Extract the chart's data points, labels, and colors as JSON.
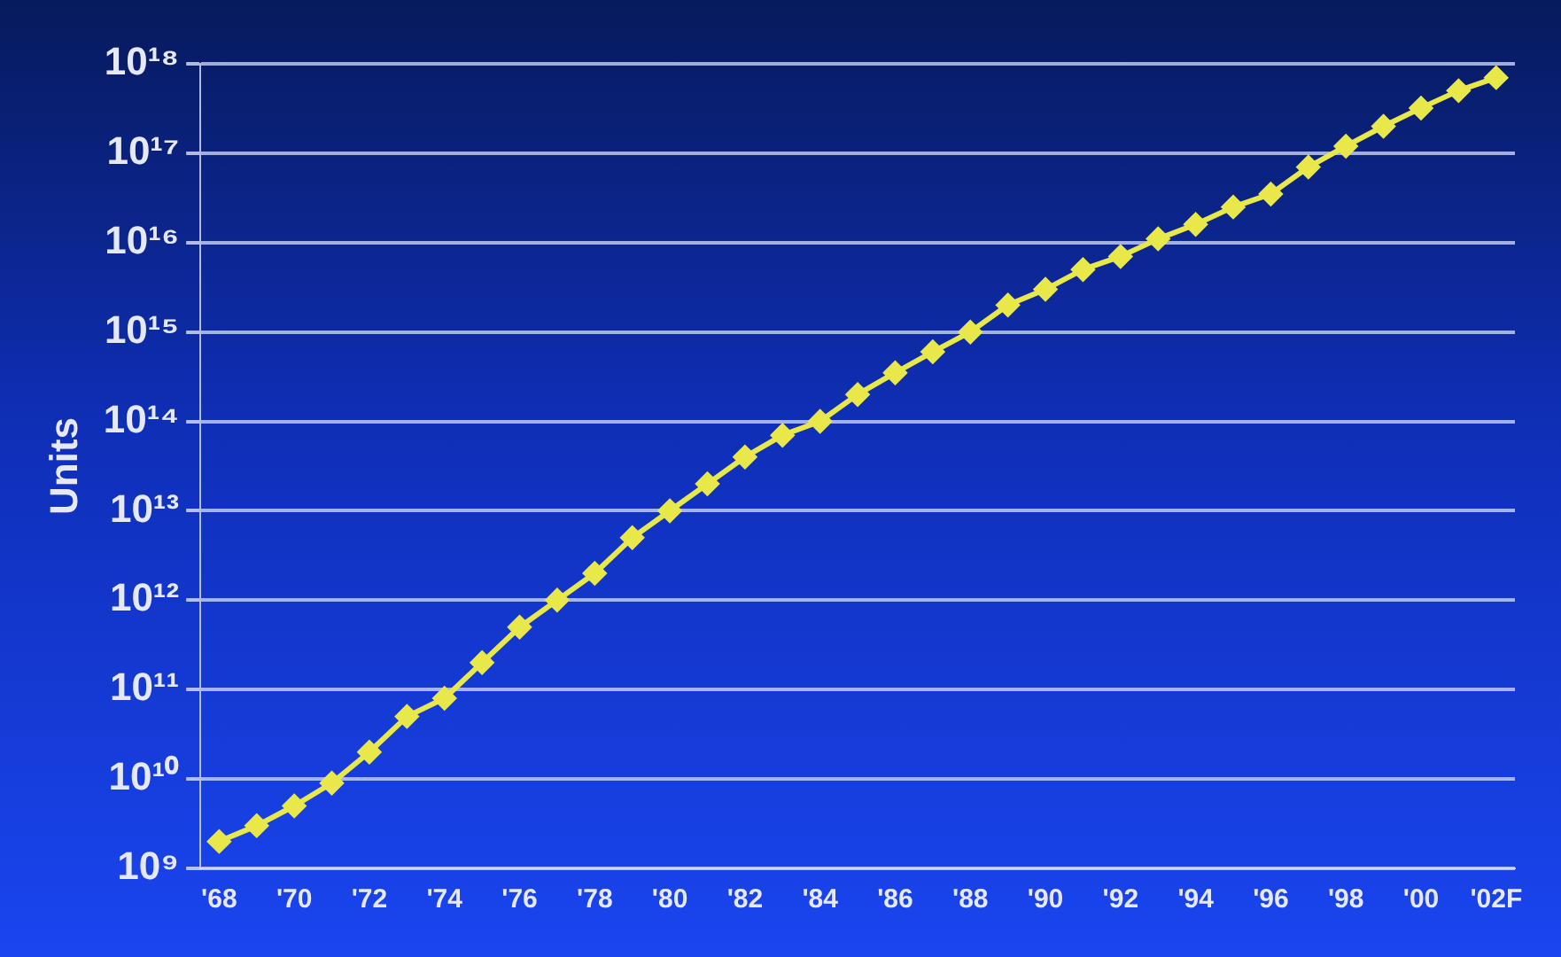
{
  "chart_data": {
    "type": "line",
    "ylabel": "Units",
    "log": true,
    "grid": "y",
    "legend": false,
    "marker": "diamond",
    "line_style": "solid",
    "categories": [
      "'68",
      null,
      "'70",
      null,
      "'72",
      null,
      "'74",
      null,
      "'76",
      null,
      "'78",
      null,
      "'80",
      null,
      "'82",
      null,
      "'84",
      null,
      "'86",
      null,
      "'88",
      null,
      "'90",
      null,
      "'92",
      null,
      "'94",
      null,
      "'96",
      null,
      "'98",
      null,
      "'00",
      null,
      "'02F"
    ],
    "ylim": [
      1000000000.0,
      1e+18
    ],
    "yticks": [
      {
        "value": 1000000000.0,
        "label": "10⁹"
      },
      {
        "value": 10000000000.0,
        "label": "10¹⁰"
      },
      {
        "value": 100000000000.0,
        "label": "10¹¹"
      },
      {
        "value": 1000000000000.0,
        "label": "10¹²"
      },
      {
        "value": 10000000000000.0,
        "label": "10¹³"
      },
      {
        "value": 100000000000000.0,
        "label": "10¹⁴"
      },
      {
        "value": 1000000000000000.0,
        "label": "10¹⁵"
      },
      {
        "value": 1e+16,
        "label": "10¹⁶"
      },
      {
        "value": 1e+17,
        "label": "10¹⁷"
      },
      {
        "value": 1e+18,
        "label": "10¹⁸"
      }
    ],
    "series": [
      {
        "color": "#e8e84a",
        "values": [
          2000000000.0,
          3000000000.0,
          5000000000.0,
          9000000000.0,
          20000000000.0,
          50000000000.0,
          80000000000.0,
          200000000000.0,
          500000000000.0,
          1000000000000.0,
          2000000000000.0,
          5000000000000.0,
          10000000000000.0,
          20000000000000.0,
          40000000000000.0,
          70000000000000.0,
          100000000000000.0,
          200000000000000.0,
          350000000000000.0,
          600000000000000.0,
          1000000000000000.0,
          2000000000000000.0,
          3000000000000000.0,
          5000000000000000.0,
          7000000000000000.0,
          1.1e+16,
          1.6e+16,
          2.5e+16,
          3.5e+16,
          7e+16,
          1.2e+17,
          2e+17,
          3.2e+17,
          5e+17,
          7e+17
        ]
      }
    ]
  }
}
